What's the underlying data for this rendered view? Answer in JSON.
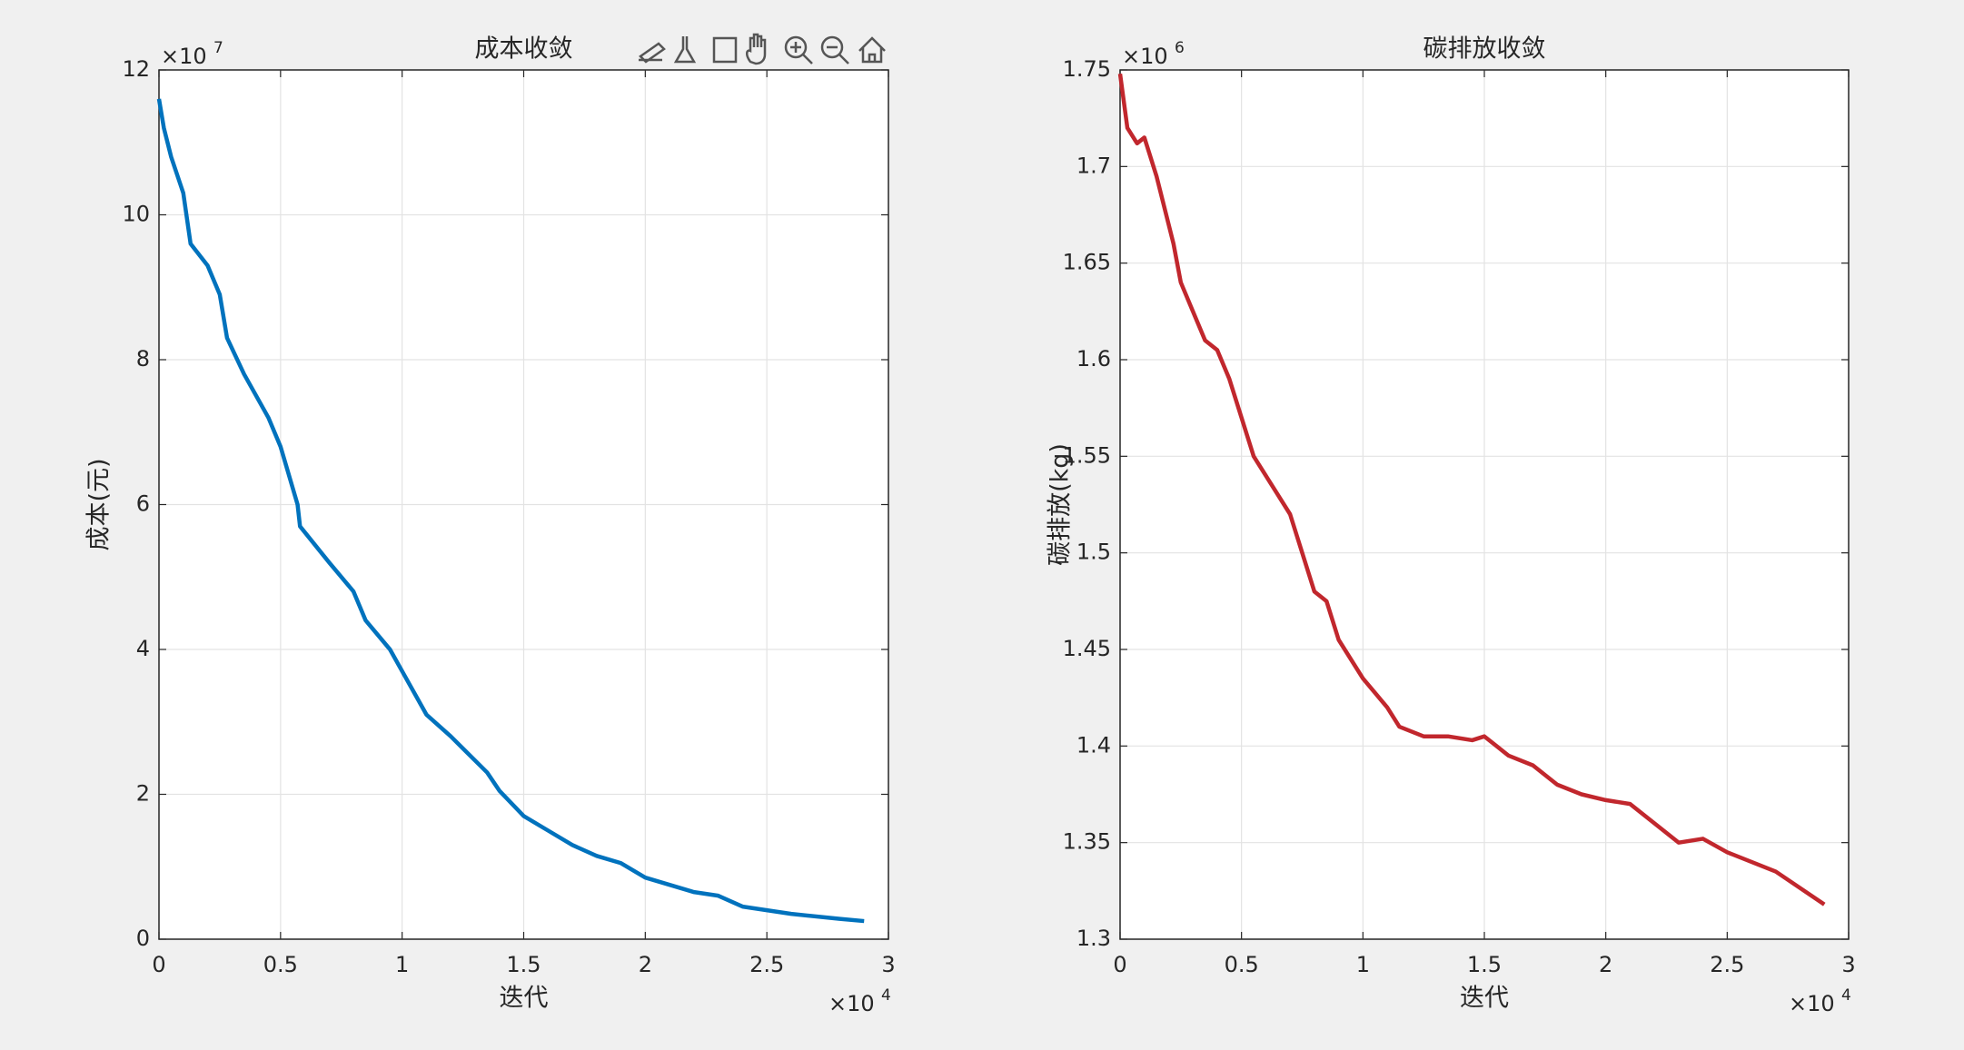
{
  "chart_data": [
    {
      "type": "line",
      "title": "成本收敛",
      "x_label": "迭代",
      "y_label": "成本(元)",
      "x_multiplier": "×10",
      "x_exponent": "4",
      "y_multiplier": "×10",
      "y_exponent": "7",
      "color": "#0072bd",
      "x": [
        0,
        0.02,
        0.05,
        0.1,
        0.13,
        0.2,
        0.25,
        0.28,
        0.35,
        0.45,
        0.5,
        0.57,
        0.58,
        0.7,
        0.8,
        0.85,
        0.95,
        1.0,
        1.1,
        1.2,
        1.35,
        1.4,
        1.5,
        1.6,
        1.7,
        1.8,
        1.9,
        2.0,
        2.2,
        2.3,
        2.4,
        2.6,
        2.8,
        2.9
      ],
      "values": [
        11.6,
        11.2,
        10.8,
        10.3,
        9.6,
        9.3,
        8.9,
        8.3,
        7.8,
        7.2,
        6.8,
        6.0,
        5.7,
        5.2,
        4.8,
        4.4,
        4.0,
        3.7,
        3.1,
        2.8,
        2.3,
        2.05,
        1.7,
        1.5,
        1.3,
        1.15,
        1.05,
        0.85,
        0.65,
        0.6,
        0.45,
        0.35,
        0.28,
        0.25
      ],
      "xlim": [
        0,
        3
      ],
      "xticks": [
        0,
        0.5,
        1,
        1.5,
        2,
        2.5,
        3
      ],
      "ylim": [
        0,
        12
      ],
      "yticks": [
        0,
        2,
        4,
        6,
        8,
        10,
        12
      ],
      "grid": true
    },
    {
      "type": "line",
      "title": "碳排放收敛",
      "x_label": "迭代",
      "y_label": "碳排放(kg)",
      "x_multiplier": "×10",
      "x_exponent": "4",
      "y_multiplier": "×10",
      "y_exponent": "6",
      "color": "#c1272d",
      "x": [
        0,
        0.03,
        0.07,
        0.1,
        0.15,
        0.22,
        0.25,
        0.3,
        0.35,
        0.4,
        0.45,
        0.5,
        0.55,
        0.6,
        0.7,
        0.75,
        0.8,
        0.85,
        0.9,
        1.0,
        1.1,
        1.15,
        1.25,
        1.35,
        1.45,
        1.5,
        1.6,
        1.7,
        1.8,
        1.9,
        2.0,
        2.1,
        2.2,
        2.3,
        2.4,
        2.5,
        2.7,
        2.9
      ],
      "values": [
        1.748,
        1.72,
        1.712,
        1.715,
        1.695,
        1.66,
        1.64,
        1.625,
        1.61,
        1.605,
        1.59,
        1.57,
        1.55,
        1.54,
        1.52,
        1.5,
        1.48,
        1.475,
        1.455,
        1.435,
        1.42,
        1.41,
        1.405,
        1.405,
        1.403,
        1.405,
        1.395,
        1.39,
        1.38,
        1.375,
        1.372,
        1.37,
        1.36,
        1.35,
        1.352,
        1.345,
        1.335,
        1.318
      ],
      "xlim": [
        0,
        3
      ],
      "xticks": [
        0,
        0.5,
        1,
        1.5,
        2,
        2.5,
        3
      ],
      "ylim": [
        1.3,
        1.75
      ],
      "yticks": [
        1.3,
        1.35,
        1.4,
        1.45,
        1.5,
        1.55,
        1.6,
        1.65,
        1.7,
        1.75
      ],
      "grid": true
    }
  ]
}
